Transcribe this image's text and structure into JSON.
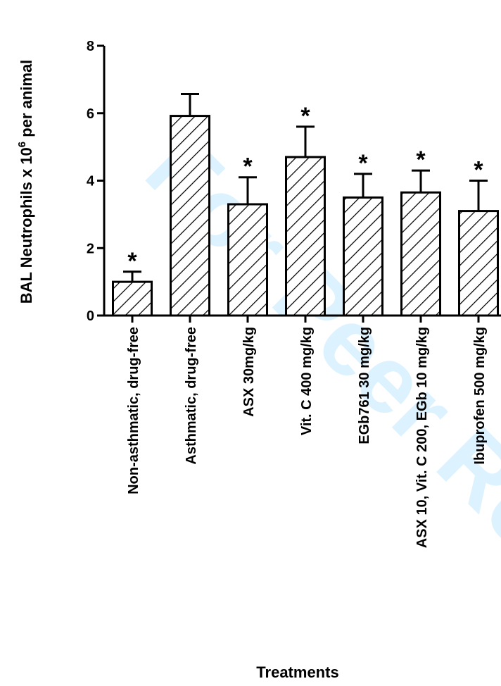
{
  "chart_data": {
    "type": "bar",
    "title": "",
    "xlabel": "Treatments",
    "ylabel_main": "BAL Neutrophils x 10",
    "ylabel_sup": "6",
    "ylabel_tail": " per animal",
    "ylim": [
      0,
      8
    ],
    "yticks": [
      "0",
      "2",
      "4",
      "6",
      "8"
    ],
    "grid": false,
    "bar_fill": "hatched",
    "categories": [
      "Non-asthmatic, drug-free",
      "Asthmatic, drug-free",
      "ASX 30mg/kg",
      "Vit. C 400 mg/kg",
      "EGb761 30 mg/kg",
      "ASX 10, Vit. C 200, EGb 10 mg/kg",
      "Ibuprofen 500 mg/kg"
    ],
    "values": [
      1.0,
      5.92,
      3.3,
      4.7,
      3.5,
      3.65,
      3.1
    ],
    "error_upper": [
      0.3,
      0.65,
      0.8,
      0.9,
      0.7,
      0.65,
      0.9
    ],
    "significance": [
      "*",
      "",
      "*",
      "*",
      "*",
      "*",
      "*"
    ]
  },
  "watermark": "For Peer Review",
  "colors": {
    "bar_edge": "#000000",
    "watermark": "#00a3ff"
  }
}
